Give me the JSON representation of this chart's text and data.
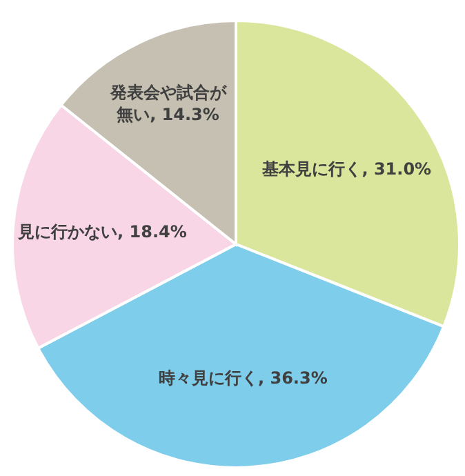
{
  "chart_data": {
    "type": "pie",
    "categories": [
      "基本見に行く",
      "時々見に行く",
      "見に行かない",
      "発表会や試合が無い"
    ],
    "values": [
      31.0,
      36.3,
      18.4,
      14.3
    ],
    "value_labels": [
      ", 31.0%",
      ", 36.3%",
      ", 18.4%",
      ", 14.3%"
    ],
    "colors": [
      "#d9e69b",
      "#7ecdea",
      "#f8d6e6",
      "#c5c0b1"
    ]
  }
}
